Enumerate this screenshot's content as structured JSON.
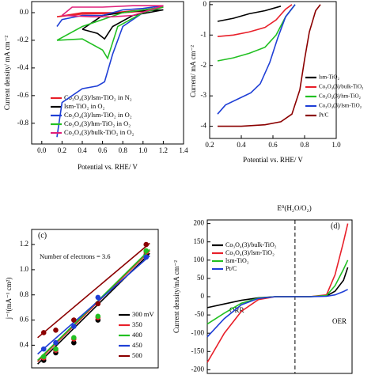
{
  "chart_data": [
    {
      "type": "line",
      "xlabel": "Potential vs. RHE/ V",
      "ylabel": "Current density/ mA cm⁻²",
      "xlim": [
        -0.1,
        1.4
      ],
      "ylim": [
        -0.95,
        0.08
      ],
      "xticks": [
        {
          "value": 0,
          "label": "0.0"
        },
        0.2,
        0.4,
        0.6,
        0.8,
        {
          "value": 1,
          "label": "1.0"
        },
        1.2,
        1.4
      ],
      "yticks": [
        {
          "value": 0,
          "label": "0.0"
        },
        -0.2,
        -0.4,
        -0.6,
        -0.8
      ],
      "series": [
        {
          "name": "Co₃O₄(3)/lsm-TiO₂ in N₂",
          "color": "#e8202a",
          "x": [
            0.15,
            0.4,
            0.7,
            1.0,
            1.2,
            1.0,
            0.7,
            0.4,
            0.15
          ],
          "values": [
            -0.03,
            -0.01,
            -0.005,
            0.01,
            0.04,
            0.02,
            0.0,
            0.0,
            -0.03
          ]
        },
        {
          "name": "lsm-TiO₂ in O₂",
          "color": "#000000",
          "x": [
            0.4,
            0.55,
            0.62,
            0.7,
            0.9,
            1.2,
            0.9,
            0.6,
            0.4
          ],
          "values": [
            -0.12,
            -0.15,
            -0.19,
            -0.1,
            -0.02,
            0.02,
            0.01,
            -0.02,
            -0.12
          ]
        },
        {
          "name": "Co₃O₄(3)/lsm-TiO₂ in O₂",
          "color": "#1f3fd6",
          "x": [
            0.15,
            0.2,
            0.4,
            0.55,
            0.62,
            0.7,
            0.8,
            1.0,
            1.2,
            1.0,
            0.8,
            0.7,
            0.6,
            0.4,
            0.2,
            0.15
          ],
          "values": [
            -0.9,
            -0.65,
            -0.55,
            -0.53,
            -0.5,
            -0.3,
            -0.1,
            0.0,
            0.05,
            0.03,
            0.02,
            0.0,
            -0.02,
            -0.02,
            -0.05,
            -0.1
          ]
        },
        {
          "name": "Co₃O₄(3)/hm-TiO₂ in O₂",
          "color": "#22c022",
          "x": [
            0.15,
            0.4,
            0.6,
            0.65,
            0.75,
            1.0,
            1.2,
            1.0,
            0.8,
            0.6,
            0.4,
            0.15
          ],
          "values": [
            -0.2,
            -0.19,
            -0.27,
            -0.33,
            -0.1,
            0.0,
            0.04,
            0.02,
            0.0,
            -0.05,
            -0.1,
            -0.2
          ]
        },
        {
          "name": "Co₃O₄(3)/bulk-TiO₂ in O₂",
          "color": "#e0207a",
          "x": [
            0.2,
            0.5,
            0.7,
            0.9,
            1.2,
            0.9,
            0.6,
            0.3,
            0.2
          ],
          "values": [
            -0.02,
            -0.03,
            -0.03,
            -0.02,
            0.05,
            0.05,
            0.04,
            0.04,
            -0.02
          ]
        }
      ]
    },
    {
      "type": "line",
      "xlabel": "Potential vs. RHE/ V",
      "ylabel": "Current/ mA cm⁻²",
      "xlim": [
        0.2,
        1.0
      ],
      "ylim": [
        -4.4,
        0.1
      ],
      "xticks": [
        0.2,
        0.4,
        0.6,
        0.8,
        {
          "value": 1,
          "label": "1.0"
        }
      ],
      "yticks": [
        0,
        -1,
        -2,
        -3,
        -4
      ],
      "series": [
        {
          "name": "lsm-TiO₂",
          "color": "#000000",
          "x": [
            0.25,
            0.35,
            0.45,
            0.55,
            0.65
          ],
          "values": [
            -0.55,
            -0.45,
            -0.3,
            -0.2,
            -0.05
          ]
        },
        {
          "name": "Co₃O₄(3)/bulk-TiO₂",
          "color": "#e8202a",
          "x": [
            0.25,
            0.35,
            0.45,
            0.55,
            0.62,
            0.68,
            0.72
          ],
          "values": [
            -1.05,
            -1.0,
            -0.9,
            -0.75,
            -0.5,
            -0.15,
            0.0
          ]
        },
        {
          "name": "Co₃O₄(3)/hm-TiO₂",
          "color": "#22c022",
          "x": [
            0.25,
            0.35,
            0.45,
            0.55,
            0.62,
            0.68,
            0.74
          ],
          "values": [
            -1.85,
            -1.75,
            -1.6,
            -1.4,
            -1.0,
            -0.4,
            0.0
          ]
        },
        {
          "name": "Co₃O₄(3)/lsm-TiO₂",
          "color": "#1f3fd6",
          "x": [
            0.25,
            0.3,
            0.38,
            0.46,
            0.52,
            0.58,
            0.63,
            0.68,
            0.74
          ],
          "values": [
            -3.6,
            -3.3,
            -3.1,
            -2.9,
            -2.6,
            -1.9,
            -1.1,
            -0.4,
            0.0
          ]
        },
        {
          "name": "Pt/C",
          "color": "#8b0000",
          "x": [
            0.25,
            0.4,
            0.55,
            0.65,
            0.72,
            0.77,
            0.8,
            0.83,
            0.87,
            0.9
          ],
          "values": [
            -4.0,
            -4.0,
            -3.95,
            -3.85,
            -3.6,
            -2.8,
            -1.8,
            -0.9,
            -0.2,
            0.0
          ]
        }
      ]
    },
    {
      "type": "scatter",
      "ylabel": "j⁻¹(mA⁻¹ cm²)",
      "annotations": [
        "(c)",
        "Number of electrons = 3.6"
      ],
      "xlim": [
        0,
        1.05
      ],
      "ylim": [
        0.22,
        1.32
      ],
      "yticks": [
        0.4,
        0.6,
        {
          "value": 0.8,
          "label": "0.8"
        },
        {
          "value": 1,
          "label": "1.0"
        },
        1.2
      ],
      "x": [
        0.1,
        0.2,
        0.35,
        0.55,
        0.95
      ],
      "fit_x": [
        0.05,
        0.98
      ],
      "series": [
        {
          "name": "300 mV",
          "color": "#000000",
          "values": [
            0.28,
            0.34,
            0.42,
            0.6,
            1.12
          ],
          "fit_values": [
            0.25,
            1.13
          ]
        },
        {
          "name": "350",
          "color": "#e8202a",
          "values": [
            0.3,
            0.36,
            0.45,
            0.62,
            1.14
          ],
          "fit_values": [
            0.27,
            1.15
          ]
        },
        {
          "name": "400",
          "color": "#22c022",
          "values": [
            0.31,
            0.37,
            0.46,
            0.63,
            1.15
          ],
          "fit_values": [
            0.28,
            1.16
          ]
        },
        {
          "name": "450",
          "color": "#1f3fd6",
          "values": [
            0.37,
            0.42,
            0.55,
            0.78,
            1.1
          ],
          "fit_values": [
            0.33,
            1.11
          ]
        },
        {
          "name": "500",
          "color": "#8b0000",
          "values": [
            0.5,
            0.52,
            0.6,
            0.73,
            1.2
          ],
          "fit_values": [
            0.46,
            1.21
          ]
        }
      ]
    },
    {
      "type": "line",
      "ylabel": "Current density/mA cm⁻²",
      "annotations": [
        "(d)",
        "E⁰(H₂O/O₂)",
        "ORR",
        "OER"
      ],
      "xlim": [
        0.2,
        1.9
      ],
      "ylim": [
        -210,
        210
      ],
      "reference_x": 1.23,
      "yticks": [
        200,
        150,
        100,
        50,
        0,
        -50,
        -100,
        -150,
        -200
      ],
      "series": [
        {
          "name": "Co₃O₄(3)/bulk-TiO₂",
          "color": "#000000",
          "x": [
            0.2,
            0.4,
            0.6,
            0.8,
            1.0,
            1.2,
            1.4,
            1.6,
            1.7,
            1.8,
            1.85
          ],
          "values": [
            -30,
            -20,
            -10,
            -3,
            0,
            0,
            0,
            2,
            15,
            45,
            80
          ]
        },
        {
          "name": "Co₃O₄(3)/lsm-TiO₂",
          "color": "#e8202a",
          "x": [
            0.2,
            0.4,
            0.6,
            0.8,
            1.0,
            1.2,
            1.4,
            1.6,
            1.7,
            1.8,
            1.85
          ],
          "values": [
            -180,
            -100,
            -40,
            -8,
            0,
            0,
            0,
            5,
            60,
            150,
            200
          ]
        },
        {
          "name": "lsm-TiO₂",
          "color": "#22c022",
          "x": [
            0.2,
            0.4,
            0.6,
            0.8,
            1.0,
            1.2,
            1.4,
            1.6,
            1.7,
            1.8,
            1.85
          ],
          "values": [
            -75,
            -45,
            -18,
            -4,
            0,
            0,
            0,
            3,
            30,
            75,
            100
          ]
        },
        {
          "name": "Pt/C",
          "color": "#1f3fd6",
          "x": [
            0.2,
            0.4,
            0.6,
            0.8,
            1.0,
            1.2,
            1.4,
            1.6,
            1.7,
            1.8,
            1.85
          ],
          "values": [
            -110,
            -60,
            -22,
            -5,
            0,
            0,
            0,
            1,
            5,
            14,
            20
          ]
        }
      ]
    }
  ]
}
